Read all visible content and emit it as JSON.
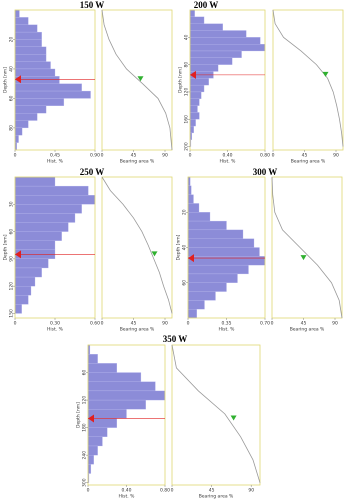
{
  "chart_data": [
    {
      "type": "profile",
      "title": "150 W",
      "ylabel": "Depth [nm]",
      "ylim": [
        0,
        95
      ],
      "yticks": [
        20,
        40,
        60,
        80
      ],
      "histogram": {
        "xlabel": "Hist. %",
        "xlim": [
          0,
          0.9
        ],
        "xticks": [
          0,
          0.45,
          {
            "value": 0.9,
            "label": "0.90"
          }
        ],
        "color": "#8c8cd8",
        "bins": [
          0,
          5,
          10,
          15,
          20,
          25,
          30,
          35,
          40,
          45,
          50,
          55,
          60,
          65,
          70,
          75,
          80,
          85,
          90,
          95
        ],
        "values": [
          0.05,
          0.15,
          0.25,
          0.3,
          0.3,
          0.35,
          0.35,
          0.4,
          0.45,
          0.5,
          0.75,
          0.85,
          0.55,
          0.35,
          0.25,
          0.15,
          0.08,
          0.04,
          0.02
        ]
      },
      "bearing": {
        "xlabel": "Bearing area %",
        "xlim": [
          0,
          100
        ],
        "xticks": [
          0,
          45,
          90
        ],
        "color": "#999999",
        "depth": [
          0,
          10,
          20,
          30,
          40,
          50,
          60,
          70,
          80,
          90,
          95
        ],
        "values": [
          0,
          3,
          10,
          20,
          35,
          58,
          80,
          91,
          97,
          99,
          100
        ]
      },
      "marker": {
        "depth": 47,
        "bearing": 55
      }
    },
    {
      "type": "profile",
      "title": "200 W",
      "ylabel": "Depth [nm]",
      "ylim": [
        0,
        205
      ],
      "yticks": [
        40,
        80,
        120,
        160,
        200
      ],
      "histogram": {
        "xlabel": "Hist. %",
        "xlim": [
          0,
          0.8
        ],
        "xticks": [
          0,
          {
            "value": 0.4,
            "label": "0.40"
          },
          {
            "value": 0.8,
            "label": "0.80"
          }
        ],
        "color": "#8c8cd8",
        "bins": [
          0,
          10,
          20,
          30,
          40,
          50,
          60,
          70,
          80,
          90,
          100,
          110,
          120,
          130,
          140,
          150,
          160,
          170,
          180,
          190,
          200
        ],
        "values": [
          0.05,
          0.15,
          0.35,
          0.6,
          0.75,
          0.8,
          0.55,
          0.45,
          0.3,
          0.25,
          0.2,
          0.15,
          0.12,
          0.1,
          0.08,
          0.1,
          0.06,
          0.04,
          0.02,
          0.01
        ]
      },
      "bearing": {
        "xlabel": "Bearing area %",
        "xlim": [
          0,
          100
        ],
        "xticks": [
          0,
          45,
          90
        ],
        "color": "#999999",
        "depth": [
          0,
          20,
          40,
          60,
          80,
          100,
          120,
          140,
          160,
          180,
          200
        ],
        "values": [
          0,
          3,
          15,
          40,
          62,
          78,
          86,
          91,
          95,
          98,
          100
        ]
      },
      "marker": {
        "depth": 95,
        "bearing": 75
      }
    },
    {
      "type": "profile",
      "title": "250 W",
      "ylabel": "Depth [nm]",
      "ylim": [
        0,
        155
      ],
      "yticks": [
        30,
        60,
        90,
        120,
        150
      ],
      "histogram": {
        "xlabel": "Hist. %",
        "xlim": [
          0,
          0.6
        ],
        "xticks": [
          0,
          {
            "value": 0.3,
            "label": "0.30"
          },
          {
            "value": 0.6,
            "label": "0.60"
          }
        ],
        "color": "#8c8cd8",
        "bins": [
          0,
          10,
          20,
          30,
          40,
          50,
          60,
          70,
          80,
          90,
          100,
          110,
          120,
          130,
          140,
          150
        ],
        "values": [
          0.3,
          0.55,
          0.6,
          0.5,
          0.45,
          0.4,
          0.35,
          0.3,
          0.3,
          0.25,
          0.2,
          0.15,
          0.12,
          0.1,
          0.05
        ]
      },
      "bearing": {
        "xlabel": "Bearing area %",
        "xlim": [
          0,
          100
        ],
        "xticks": [
          0,
          45,
          90
        ],
        "color": "#999999",
        "depth": [
          0,
          15,
          30,
          45,
          60,
          75,
          90,
          105,
          120,
          135,
          150
        ],
        "values": [
          0,
          12,
          30,
          45,
          57,
          66,
          74,
          82,
          88,
          95,
          100
        ]
      },
      "marker": {
        "depth": 85,
        "bearing": 75
      }
    },
    {
      "type": "profile",
      "title": "300 W",
      "ylabel": "Depth [nm]",
      "ylim": [
        0,
        80
      ],
      "yticks": [
        20,
        40,
        60
      ],
      "histogram": {
        "xlabel": "Hist. %",
        "xlim": [
          0,
          0.7
        ],
        "xticks": [
          0,
          0.35,
          {
            "value": 0.7,
            "label": "0.70"
          }
        ],
        "color": "#8c8cd8",
        "bins": [
          0,
          5,
          10,
          15,
          20,
          25,
          30,
          35,
          40,
          45,
          50,
          55,
          60,
          65,
          70,
          75,
          80
        ],
        "values": [
          0.02,
          0.03,
          0.05,
          0.1,
          0.2,
          0.35,
          0.5,
          0.6,
          0.65,
          0.7,
          0.55,
          0.45,
          0.35,
          0.25,
          0.15,
          0.08
        ]
      },
      "bearing": {
        "xlabel": "Bearing area %",
        "xlim": [
          0,
          100
        ],
        "xticks": [
          0,
          45,
          90
        ],
        "color": "#999999",
        "depth": [
          0,
          10,
          20,
          30,
          40,
          50,
          60,
          70,
          80
        ],
        "values": [
          0,
          1,
          4,
          15,
          40,
          65,
          85,
          96,
          100
        ]
      },
      "marker": {
        "depth": 46,
        "bearing": 45
      }
    },
    {
      "type": "profile",
      "title": "350 W",
      "ylabel": "Depth [nm]",
      "ylim": [
        0,
        305
      ],
      "yticks": [
        60,
        120,
        180,
        240,
        300
      ],
      "histogram": {
        "xlabel": "Hist. %",
        "xlim": [
          0,
          0.8
        ],
        "xticks": [
          0,
          {
            "value": 0.4,
            "label": "0.40"
          },
          {
            "value": 0.8,
            "label": "0.80"
          }
        ],
        "color": "#8c8cd8",
        "bins": [
          0,
          20,
          40,
          60,
          80,
          100,
          120,
          140,
          160,
          180,
          200,
          220,
          240,
          260,
          280,
          300
        ],
        "values": [
          0.02,
          0.1,
          0.3,
          0.55,
          0.7,
          0.8,
          0.6,
          0.4,
          0.3,
          0.2,
          0.15,
          0.1,
          0.06,
          0.03,
          0.01
        ]
      },
      "bearing": {
        "xlabel": "Bearing area %",
        "xlim": [
          0,
          100
        ],
        "xticks": [
          0,
          45,
          90
        ],
        "color": "#999999",
        "depth": [
          0,
          50,
          100,
          150,
          200,
          250,
          300
        ],
        "values": [
          0,
          5,
          30,
          60,
          78,
          92,
          100
        ]
      },
      "marker": {
        "depth": 160,
        "bearing": 70
      }
    }
  ]
}
